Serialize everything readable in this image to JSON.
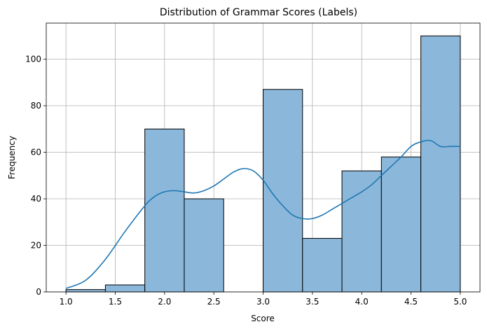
{
  "chart_data": {
    "type": "histogram",
    "title": "Distribution of Grammar Scores (Labels)",
    "xlabel": "Score",
    "ylabel": "Frequency",
    "xlim": [
      0.8,
      5.2
    ],
    "ylim": [
      0,
      115.5
    ],
    "xticks": [
      1.0,
      1.5,
      2.0,
      2.5,
      3.0,
      3.5,
      4.0,
      4.5,
      5.0
    ],
    "xtick_labels": [
      "1.0",
      "1.5",
      "2.0",
      "2.5",
      "3.0",
      "3.5",
      "4.0",
      "4.5",
      "5.0"
    ],
    "yticks": [
      0,
      20,
      40,
      60,
      80,
      100
    ],
    "ytick_labels": [
      "0",
      "20",
      "40",
      "60",
      "80",
      "100"
    ],
    "grid": true,
    "bins": [
      {
        "x0": 1.0,
        "x1": 1.4,
        "count": 1
      },
      {
        "x0": 1.4,
        "x1": 1.8,
        "count": 3
      },
      {
        "x0": 1.8,
        "x1": 2.2,
        "count": 70
      },
      {
        "x0": 2.2,
        "x1": 2.6,
        "count": 40
      },
      {
        "x0": 2.6,
        "x1": 3.0,
        "count": 0
      },
      {
        "x0": 3.0,
        "x1": 3.4,
        "count": 87
      },
      {
        "x0": 3.4,
        "x1": 3.8,
        "count": 23
      },
      {
        "x0": 3.8,
        "x1": 4.2,
        "count": 52
      },
      {
        "x0": 4.2,
        "x1": 4.6,
        "count": 58
      },
      {
        "x0": 4.6,
        "x1": 5.0,
        "count": 110
      }
    ],
    "kde": {
      "x": [
        1.0,
        1.2,
        1.4,
        1.6,
        1.8,
        1.9,
        2.0,
        2.1,
        2.2,
        2.3,
        2.4,
        2.5,
        2.6,
        2.7,
        2.8,
        2.9,
        3.0,
        3.1,
        3.2,
        3.3,
        3.4,
        3.5,
        3.6,
        3.7,
        3.8,
        3.9,
        4.0,
        4.1,
        4.2,
        4.3,
        4.4,
        4.5,
        4.6,
        4.7,
        4.8,
        4.9,
        5.0
      ],
      "y": [
        1.5,
        5,
        14,
        26,
        37,
        41,
        43,
        43.5,
        43,
        42.5,
        43.5,
        45.5,
        48.5,
        51.5,
        53,
        52,
        48,
        42,
        37,
        33,
        31.5,
        31.5,
        33,
        35.5,
        38,
        40.5,
        43,
        46,
        50,
        54,
        58,
        62.5,
        64.5,
        65,
        62.5,
        62.5,
        62.5
      ]
    },
    "colors": {
      "bar_fill": "#8bb8da",
      "bar_edge": "#000000",
      "kde_line": "#1f77b4",
      "grid": "#b0b0b0"
    }
  }
}
